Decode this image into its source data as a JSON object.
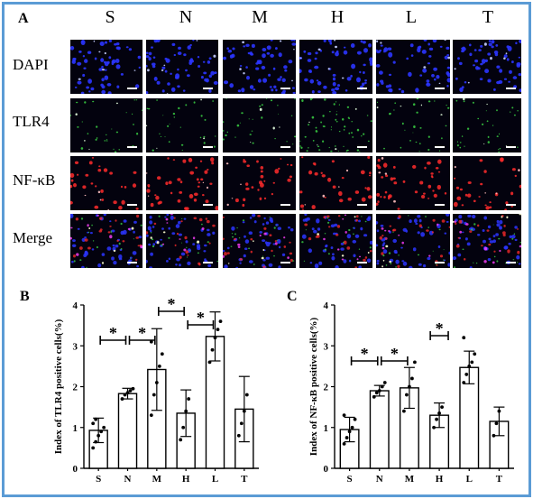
{
  "figure": {
    "panel_labels": {
      "a": "A",
      "b": "B",
      "c": "C"
    },
    "columns": [
      "S",
      "N",
      "M",
      "H",
      "L",
      "T"
    ],
    "rows": [
      "DAPI",
      "TLR4",
      "NF-κB",
      "Merge"
    ],
    "colors": {
      "frame": "#5b9bd5",
      "dapi": "#2b35ff",
      "tlr4": "#39d043",
      "nfkb": "#ff2b2b",
      "merge_extra": "#ff40ff"
    }
  },
  "chart_data": [
    {
      "type": "bar",
      "panel": "B",
      "categories": [
        "S",
        "N",
        "M",
        "H",
        "L",
        "T"
      ],
      "values": [
        0.93,
        1.83,
        2.42,
        1.35,
        3.23,
        1.45
      ],
      "error": [
        0.3,
        0.13,
        1.0,
        0.57,
        0.6,
        0.8
      ],
      "points": [
        [
          0.5,
          0.65,
          0.8,
          0.9,
          1.0,
          1.1,
          1.2
        ],
        [
          1.7,
          1.8,
          1.85,
          1.9,
          1.95
        ],
        [
          1.3,
          1.8,
          2.1,
          2.5,
          2.8,
          3.1
        ],
        [
          0.7,
          1.0,
          1.4,
          1.7
        ],
        [
          2.6,
          2.9,
          3.2,
          3.4,
          3.6
        ],
        [
          0.8,
          1.1,
          1.4,
          1.8
        ]
      ],
      "ylabel": "Index of TLR4 positive cells(%)",
      "ylim": [
        0,
        4
      ],
      "yticks": [
        "0",
        "1",
        "2",
        "3",
        "4"
      ],
      "significance": [
        {
          "from": "S",
          "to": "N",
          "label": "*"
        },
        {
          "from": "N",
          "to": "M",
          "label": "*"
        },
        {
          "from": "M",
          "to": "H",
          "label": "*"
        },
        {
          "from": "H",
          "to": "L",
          "label": "*"
        }
      ]
    },
    {
      "type": "bar",
      "panel": "C",
      "categories": [
        "S",
        "N",
        "M",
        "H",
        "L",
        "T"
      ],
      "values": [
        0.95,
        1.9,
        1.97,
        1.3,
        2.47,
        1.15
      ],
      "error": [
        0.3,
        0.13,
        0.5,
        0.3,
        0.4,
        0.35
      ],
      "points": [
        [
          0.6,
          0.75,
          0.9,
          1.0,
          1.2,
          1.3
        ],
        [
          1.75,
          1.85,
          1.9,
          2.0,
          2.1
        ],
        [
          1.4,
          1.8,
          2.0,
          2.2,
          2.6
        ],
        [
          1.0,
          1.2,
          1.35,
          1.5
        ],
        [
          2.1,
          2.3,
          2.5,
          2.6,
          2.8,
          3.2
        ],
        [
          0.8,
          1.1,
          1.4
        ]
      ],
      "ylabel": "Index of NF-κB positive cells(%)",
      "ylim": [
        0,
        4
      ],
      "yticks": [
        "0",
        "1",
        "2",
        "3",
        "4"
      ],
      "significance": [
        {
          "from": "S",
          "to": "N",
          "label": "*"
        },
        {
          "from": "N",
          "to": "M",
          "label": "*"
        },
        {
          "from": "H",
          "to": "H",
          "label": "*"
        }
      ]
    }
  ]
}
